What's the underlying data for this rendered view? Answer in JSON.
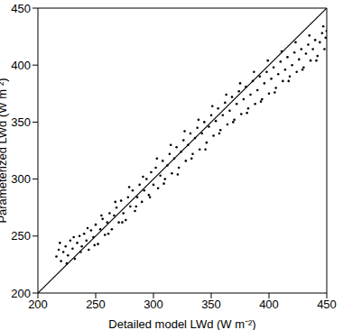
{
  "chart_data": {
    "type": "scatter",
    "xlabel": "Detailed model LWd (W m⁻²)",
    "ylabel": "Parameterized LWd (W m⁻²)",
    "xlim": [
      200,
      450
    ],
    "ylim": [
      200,
      450
    ],
    "xticks": [
      200,
      250,
      300,
      350,
      400,
      450
    ],
    "yticks": [
      200,
      250,
      300,
      350,
      400,
      450
    ],
    "grid": false,
    "series": [
      {
        "type": "scatter",
        "marker": "circle",
        "color": "#000000",
        "x": [
          216,
          218,
          220,
          222,
          224,
          226,
          228,
          230,
          232,
          234,
          236,
          238,
          240,
          242,
          244,
          246,
          248,
          250,
          252,
          254,
          256,
          258,
          260,
          262,
          264,
          266,
          268,
          270,
          272,
          274,
          276,
          278,
          280,
          282,
          284,
          286,
          288,
          290,
          292,
          294,
          296,
          298,
          300,
          302,
          304,
          306,
          308,
          310,
          312,
          314,
          316,
          318,
          320,
          322,
          324,
          326,
          328,
          330,
          332,
          334,
          336,
          338,
          340,
          342,
          344,
          346,
          348,
          350,
          352,
          354,
          356,
          358,
          360,
          362,
          364,
          366,
          368,
          370,
          372,
          374,
          376,
          378,
          380,
          382,
          384,
          386,
          388,
          390,
          392,
          394,
          396,
          398,
          400,
          402,
          404,
          406,
          408,
          410,
          412,
          414,
          416,
          418,
          420,
          422,
          424,
          426,
          428,
          430,
          432,
          434,
          436,
          438,
          440,
          442,
          444,
          446,
          448,
          450,
          219,
          225,
          231,
          237,
          243,
          249,
          255,
          261,
          267,
          273,
          279,
          285,
          291,
          297,
          303,
          309,
          315,
          321,
          327,
          333,
          339,
          345,
          351,
          357,
          363,
          369,
          375,
          381,
          387,
          393,
          399,
          405,
          411,
          417,
          423,
          429,
          435,
          441,
          447,
          449
        ],
        "values": [
          232,
          238,
          228,
          236,
          241,
          233,
          246,
          239,
          230,
          244,
          250,
          241,
          252,
          246,
          238,
          255,
          249,
          260,
          243,
          256,
          265,
          251,
          262,
          270,
          256,
          268,
          275,
          262,
          281,
          270,
          264,
          284,
          276,
          290,
          272,
          284,
          295,
          280,
          290,
          300,
          286,
          306,
          295,
          310,
          292,
          303,
          316,
          300,
          312,
          322,
          305,
          318,
          328,
          310,
          324,
          334,
          316,
          330,
          340,
          322,
          336,
          345,
          326,
          340,
          350,
          332,
          346,
          356,
          338,
          351,
          362,
          343,
          356,
          367,
          348,
          360,
          372,
          352,
          366,
          377,
          357,
          370,
          381,
          362,
          374,
          386,
          366,
          378,
          390,
          370,
          384,
          394,
          375,
          388,
          398,
          380,
          392,
          403,
          386,
          396,
          407,
          390,
          400,
          411,
          394,
          405,
          414,
          398,
          410,
          418,
          404,
          414,
          422,
          408,
          420,
          428,
          414,
          430,
          244,
          226,
          249,
          236,
          257,
          242,
          268,
          252,
          280,
          262,
          293,
          276,
          302,
          284,
          318,
          296,
          330,
          304,
          342,
          318,
          352,
          326,
          364,
          340,
          374,
          350,
          384,
          358,
          394,
          368,
          404,
          376,
          412,
          386,
          420,
          396,
          426,
          404,
          434,
          424
        ]
      },
      {
        "type": "line",
        "color": "#000000",
        "x": [
          200,
          450
        ],
        "values": [
          200,
          450
        ]
      }
    ]
  }
}
